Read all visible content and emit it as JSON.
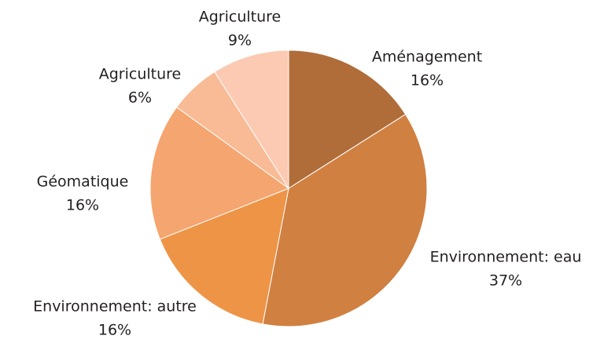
{
  "chart_data": {
    "type": "pie",
    "categories": [
      "Aménagement",
      "Environnement: eau",
      "Environnement: autre",
      "Géomatique",
      "Agriculture",
      "Agriculture"
    ],
    "values": [
      16,
      37,
      16,
      16,
      6,
      9
    ],
    "value_labels": [
      "16%",
      "37%",
      "16%",
      "16%",
      "6%",
      "9%"
    ],
    "colors": [
      "#b06d3a",
      "#d08040",
      "#ee9447",
      "#f5a56f",
      "#f8bb96",
      "#fccab3"
    ]
  }
}
